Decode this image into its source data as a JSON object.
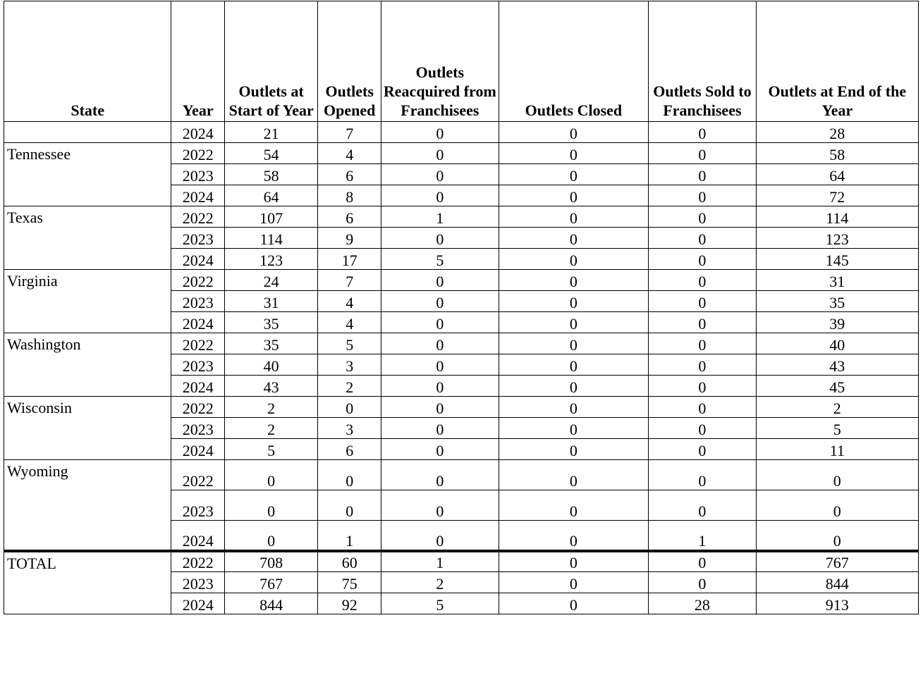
{
  "headers": {
    "state": "State",
    "year": "Year",
    "start": "Outlets at Start of Year",
    "opened": "Outlets Opened",
    "reacquired": "Outlets Reacquired from Franchisees",
    "closed": "Outlets Closed",
    "sold": "Outlets Sold to Franchisees",
    "end": "Outlets at End of the Year"
  },
  "rows": [
    {
      "state": "",
      "year": "2024",
      "start": "21",
      "opened": "7",
      "reacquired": "0",
      "closed": "0",
      "sold": "0",
      "end": "28"
    },
    {
      "state": "Tennessee",
      "year": "2022",
      "start": "54",
      "opened": "4",
      "reacquired": "0",
      "closed": "0",
      "sold": "0",
      "end": "58"
    },
    {
      "state": "",
      "year": "2023",
      "start": "58",
      "opened": "6",
      "reacquired": "0",
      "closed": "0",
      "sold": "0",
      "end": "64"
    },
    {
      "state": "",
      "year": "2024",
      "start": "64",
      "opened": "8",
      "reacquired": "0",
      "closed": "0",
      "sold": "0",
      "end": "72"
    },
    {
      "state": "Texas",
      "year": "2022",
      "start": "107",
      "opened": "6",
      "reacquired": "1",
      "closed": "0",
      "sold": "0",
      "end": "114"
    },
    {
      "state": "",
      "year": "2023",
      "start": "114",
      "opened": "9",
      "reacquired": "0",
      "closed": "0",
      "sold": "0",
      "end": "123"
    },
    {
      "state": "",
      "year": "2024",
      "start": "123",
      "opened": "17",
      "reacquired": "5",
      "closed": "0",
      "sold": "0",
      "end": "145"
    },
    {
      "state": "Virginia",
      "year": "2022",
      "start": "24",
      "opened": "7",
      "reacquired": "0",
      "closed": "0",
      "sold": "0",
      "end": "31"
    },
    {
      "state": "",
      "year": "2023",
      "start": "31",
      "opened": "4",
      "reacquired": "0",
      "closed": "0",
      "sold": "0",
      "end": "35"
    },
    {
      "state": "",
      "year": "2024",
      "start": "35",
      "opened": "4",
      "reacquired": "0",
      "closed": "0",
      "sold": "0",
      "end": "39"
    },
    {
      "state": "Washington",
      "year": "2022",
      "start": "35",
      "opened": "5",
      "reacquired": "0",
      "closed": "0",
      "sold": "0",
      "end": "40"
    },
    {
      "state": "",
      "year": "2023",
      "start": "40",
      "opened": "3",
      "reacquired": "0",
      "closed": "0",
      "sold": "0",
      "end": "43"
    },
    {
      "state": "",
      "year": "2024",
      "start": "43",
      "opened": "2",
      "reacquired": "0",
      "closed": "0",
      "sold": "0",
      "end": "45"
    },
    {
      "state": "Wisconsin",
      "year": "2022",
      "start": "2",
      "opened": "0",
      "reacquired": "0",
      "closed": "0",
      "sold": "0",
      "end": "2"
    },
    {
      "state": "",
      "year": "2023",
      "start": "2",
      "opened": "3",
      "reacquired": "0",
      "closed": "0",
      "sold": "0",
      "end": "5"
    },
    {
      "state": "",
      "year": "2024",
      "start": "5",
      "opened": "6",
      "reacquired": "0",
      "closed": "0",
      "sold": "0",
      "end": "11"
    },
    {
      "state": "Wyoming",
      "year": "2022",
      "start": "0",
      "opened": "0",
      "reacquired": "0",
      "closed": "0",
      "sold": "0",
      "end": "0"
    },
    {
      "state": "",
      "year": "2023",
      "start": "0",
      "opened": "0",
      "reacquired": "0",
      "closed": "0",
      "sold": "0",
      "end": "0"
    },
    {
      "state": "",
      "year": "2024",
      "start": "0",
      "opened": "1",
      "reacquired": "0",
      "closed": "0",
      "sold": "1",
      "end": "0"
    },
    {
      "state": "TOTAL",
      "year": "2022",
      "start": "708",
      "opened": "60",
      "reacquired": "1",
      "closed": "0",
      "sold": "0",
      "end": "767"
    },
    {
      "state": "",
      "year": "2023",
      "start": "767",
      "opened": "75",
      "reacquired": "2",
      "closed": "0",
      "sold": "0",
      "end": "844"
    },
    {
      "state": "",
      "year": "2024",
      "start": "844",
      "opened": "92",
      "reacquired": "5",
      "closed": "0",
      "sold": "28",
      "end": "913"
    }
  ]
}
